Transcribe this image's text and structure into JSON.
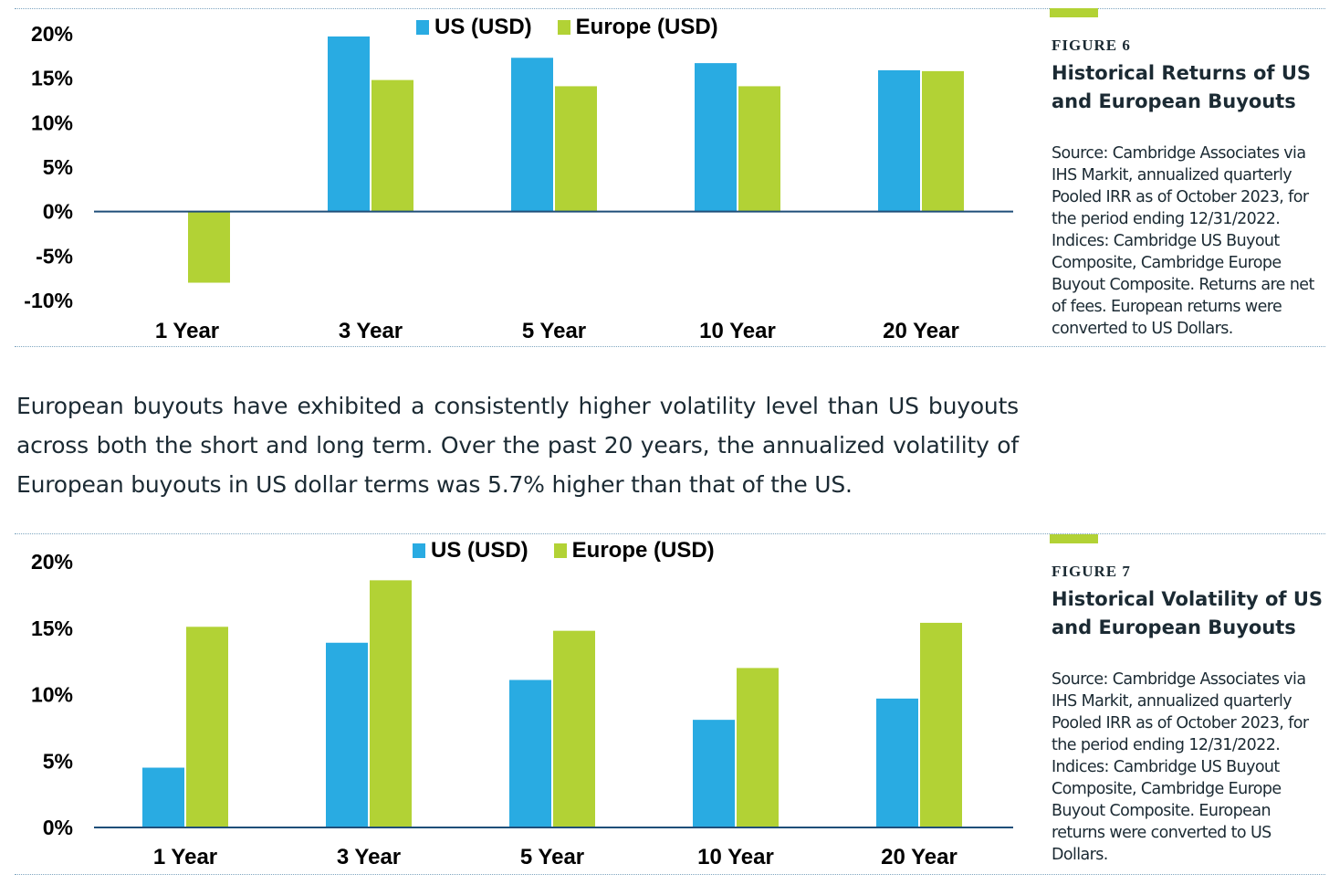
{
  "colors": {
    "us": "#29abe2",
    "europe": "#b2d235",
    "axis": "#1f4e79"
  },
  "paragraph": "European buyouts have exhibited a consistently higher volatility level than US buyouts across both the short and long term. Over the past 20 years, the annualized volatility of European buyouts in US dollar terms was 5.7% higher than that of the US.",
  "figures": [
    {
      "label": "FIGURE 6",
      "title": "Historical Returns of US and European Buyouts",
      "source": "Source: Cambridge Associates via IHS Markit, annualized quarterly Pooled IRR as of October 2023, for the period ending 12/31/2022. Indices: Cambridge US Buyout Composite, Cambridge Europe Buyout Composite. Returns are net of fees. European returns were converted to US Dollars."
    },
    {
      "label": "FIGURE 7",
      "title": "Historical Volatility of US and European Buyouts",
      "source": "Source: Cambridge Associates via IHS Markit, annualized quarterly Pooled IRR as of October 2023, for the period ending 12/31/2022. Indices: Cambridge US Buyout Composite, Cambridge Europe Buyout Composite. European returns were converted to US Dollars."
    }
  ],
  "chart_data": [
    {
      "type": "bar",
      "categories": [
        "1 Year",
        "3 Year",
        "5 Year",
        "10 Year",
        "20 Year"
      ],
      "series": [
        {
          "name": "US (USD)",
          "values": [
            0.0,
            19.7,
            17.3,
            16.7,
            15.9
          ]
        },
        {
          "name": "Europe (USD)",
          "values": [
            -8.0,
            14.8,
            14.1,
            14.1,
            15.8
          ]
        }
      ],
      "ylim": [
        -10,
        20
      ],
      "yticks": [
        -10,
        -5,
        0,
        5,
        10,
        15,
        20
      ],
      "ytick_labels": [
        "-10%",
        "-5%",
        "0%",
        "5%",
        "10%",
        "15%",
        "20%"
      ],
      "legend": "top",
      "grid": false
    },
    {
      "type": "bar",
      "categories": [
        "1 Year",
        "3 Year",
        "5 Year",
        "10 Year",
        "20 Year"
      ],
      "series": [
        {
          "name": "US (USD)",
          "values": [
            4.5,
            13.9,
            11.1,
            8.1,
            9.7
          ]
        },
        {
          "name": "Europe (USD)",
          "values": [
            15.1,
            18.6,
            14.8,
            12.0,
            15.4
          ]
        }
      ],
      "ylim": [
        0,
        20
      ],
      "yticks": [
        0,
        5,
        10,
        15,
        20
      ],
      "ytick_labels": [
        "0%",
        "5%",
        "10%",
        "15%",
        "20%"
      ],
      "legend": "top",
      "grid": false
    }
  ]
}
